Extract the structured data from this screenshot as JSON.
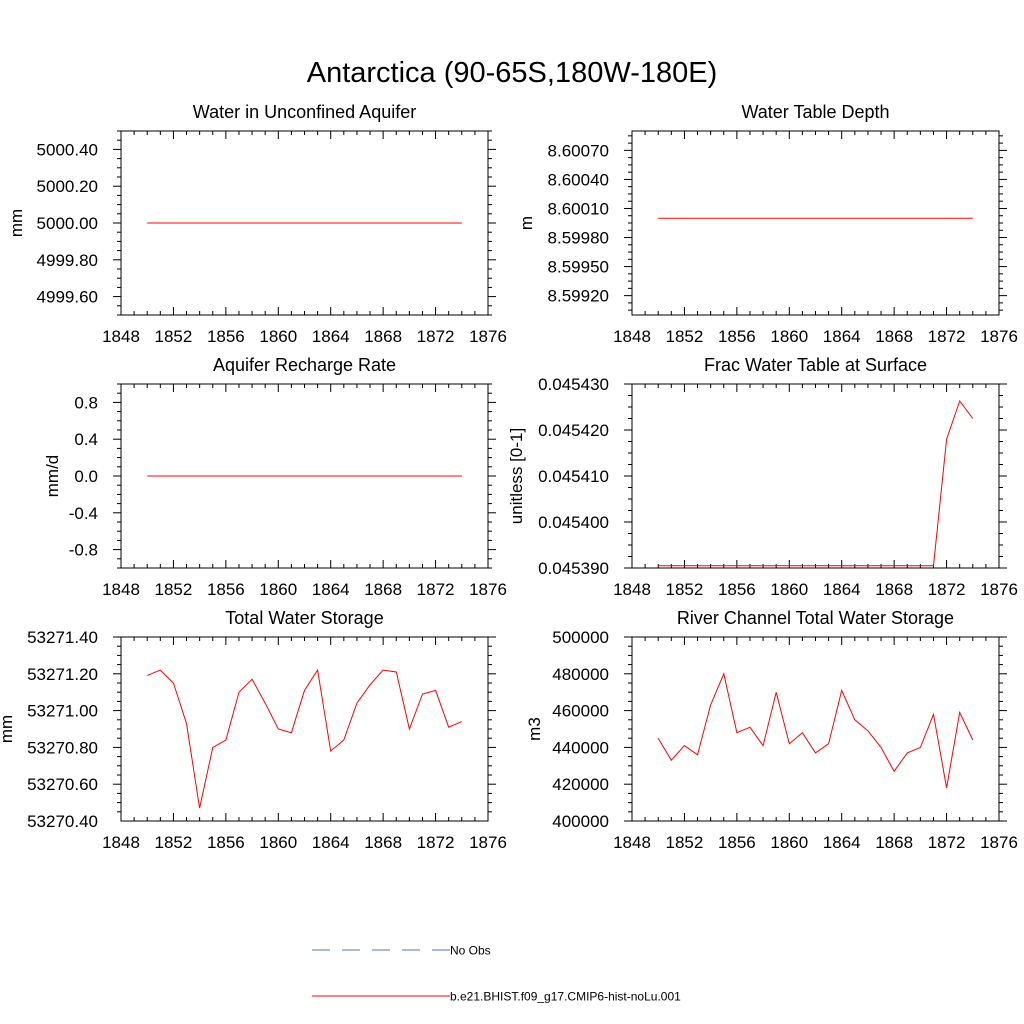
{
  "figure": {
    "title": "Antarctica (90-65S,180W-180E)"
  },
  "legend": {
    "entries": [
      {
        "label": "No Obs",
        "color": "#5b6fbf",
        "dashed": true
      },
      {
        "label": "b.e21.BHIST.f09_g17.CMIP6-hist-noLu.001",
        "color": "#ff0000",
        "dashed": false
      }
    ]
  },
  "chart_data": [
    {
      "type": "line",
      "title": "Water in Unconfined Aquifer",
      "ylabel": "mm",
      "xlim": [
        1848,
        1876
      ],
      "ylim": [
        4999.5,
        5000.5
      ],
      "xticks": [
        "1848",
        "1852",
        "1856",
        "1860",
        "1864",
        "1868",
        "1872",
        "1876"
      ],
      "yticks": [
        {
          "v": 5000.4,
          "l": "5000.40"
        },
        {
          "v": 5000.2,
          "l": "5000.20"
        },
        {
          "v": 5000.0,
          "l": "5000.00"
        },
        {
          "v": 4999.8,
          "l": "4999.80"
        },
        {
          "v": 4999.6,
          "l": "4999.60"
        }
      ],
      "series": [
        {
          "color": "#ff0000",
          "x": [
            1850,
            1851,
            1852,
            1853,
            1854,
            1855,
            1856,
            1857,
            1858,
            1859,
            1860,
            1861,
            1862,
            1863,
            1864,
            1865,
            1866,
            1867,
            1868,
            1869,
            1870,
            1871,
            1872,
            1873,
            1874
          ],
          "values": [
            5000,
            5000,
            5000,
            5000,
            5000,
            5000,
            5000,
            5000,
            5000,
            5000,
            5000,
            5000,
            5000,
            5000,
            5000,
            5000,
            5000,
            5000,
            5000,
            5000,
            5000,
            5000,
            5000,
            5000,
            5000
          ]
        }
      ]
    },
    {
      "type": "line",
      "title": "Water Table Depth",
      "ylabel": "m",
      "xlim": [
        1848,
        1876
      ],
      "ylim": [
        8.599,
        8.6009
      ],
      "xticks": [
        "1848",
        "1852",
        "1856",
        "1860",
        "1864",
        "1868",
        "1872",
        "1876"
      ],
      "yticks": [
        {
          "v": 8.6007,
          "l": "8.60070"
        },
        {
          "v": 8.6004,
          "l": "8.60040"
        },
        {
          "v": 8.6001,
          "l": "8.60010"
        },
        {
          "v": 8.5998,
          "l": "8.59980"
        },
        {
          "v": 8.5995,
          "l": "8.59950"
        },
        {
          "v": 8.5992,
          "l": "8.59920"
        }
      ],
      "series": [
        {
          "color": "#ff0000",
          "x": [
            1850,
            1851,
            1852,
            1853,
            1854,
            1855,
            1856,
            1857,
            1858,
            1859,
            1860,
            1861,
            1862,
            1863,
            1864,
            1865,
            1866,
            1867,
            1868,
            1869,
            1870,
            1871,
            1872,
            1873,
            1874
          ],
          "values": [
            8.6,
            8.6,
            8.6,
            8.6,
            8.6,
            8.6,
            8.6,
            8.6,
            8.6,
            8.6,
            8.6,
            8.6,
            8.6,
            8.6,
            8.6,
            8.6,
            8.6,
            8.6,
            8.6,
            8.6,
            8.6,
            8.6,
            8.6,
            8.6,
            8.6
          ]
        }
      ]
    },
    {
      "type": "line",
      "title": "Aquifer Recharge Rate",
      "ylabel": "mm/d",
      "xlim": [
        1848,
        1876
      ],
      "ylim": [
        -1,
        1
      ],
      "xticks": [
        "1848",
        "1852",
        "1856",
        "1860",
        "1864",
        "1868",
        "1872",
        "1876"
      ],
      "yticks": [
        {
          "v": 0.8,
          "l": "0.8"
        },
        {
          "v": 0.4,
          "l": "0.4"
        },
        {
          "v": 0,
          "l": "0.0"
        },
        {
          "v": -0.4,
          "l": "-0.4"
        },
        {
          "v": -0.8,
          "l": "-0.8"
        }
      ],
      "series": [
        {
          "color": "#ff0000",
          "x": [
            1850,
            1851,
            1852,
            1853,
            1854,
            1855,
            1856,
            1857,
            1858,
            1859,
            1860,
            1861,
            1862,
            1863,
            1864,
            1865,
            1866,
            1867,
            1868,
            1869,
            1870,
            1871,
            1872,
            1873,
            1874
          ],
          "values": [
            0,
            0,
            0,
            0,
            0,
            0,
            0,
            0,
            0,
            0,
            0,
            0,
            0,
            0,
            0,
            0,
            0,
            0,
            0,
            0,
            0,
            0,
            0,
            0,
            0
          ]
        }
      ]
    },
    {
      "type": "line",
      "title": "Frac Water Table at Surface",
      "ylabel": "unitless [0-1]",
      "xlim": [
        1848,
        1876
      ],
      "ylim": [
        0.04539,
        0.04543
      ],
      "xticks": [
        "1848",
        "1852",
        "1856",
        "1860",
        "1864",
        "1868",
        "1872",
        "1876"
      ],
      "yticks": [
        {
          "v": 0.04543,
          "l": "0.045430"
        },
        {
          "v": 0.04542,
          "l": "0.045420"
        },
        {
          "v": 0.04541,
          "l": "0.045410"
        },
        {
          "v": 0.0454,
          "l": "0.045400"
        },
        {
          "v": 0.04539,
          "l": "0.045390"
        }
      ],
      "series": [
        {
          "color": "#ff0000",
          "x": [
            1850,
            1851,
            1852,
            1853,
            1854,
            1855,
            1856,
            1857,
            1858,
            1859,
            1860,
            1861,
            1862,
            1863,
            1864,
            1865,
            1866,
            1867,
            1868,
            1869,
            1870,
            1871,
            1872,
            1873,
            1874
          ],
          "values": [
            0.0453905,
            0.0453905,
            0.0453905,
            0.0453905,
            0.0453905,
            0.0453905,
            0.0453905,
            0.0453905,
            0.0453905,
            0.0453905,
            0.0453905,
            0.0453905,
            0.0453905,
            0.0453905,
            0.0453905,
            0.0453905,
            0.0453905,
            0.0453905,
            0.0453905,
            0.0453905,
            0.0453905,
            0.0453905,
            0.045418,
            0.0454263,
            0.0454225
          ]
        }
      ]
    },
    {
      "type": "line",
      "title": "Total Water Storage",
      "ylabel": "mm",
      "xlim": [
        1848,
        1876
      ],
      "ylim": [
        53270.4,
        53271.4
      ],
      "xticks": [
        "1848",
        "1852",
        "1856",
        "1860",
        "1864",
        "1868",
        "1872",
        "1876"
      ],
      "yticks": [
        {
          "v": 53271.4,
          "l": "53271.40"
        },
        {
          "v": 53271.2,
          "l": "53271.20"
        },
        {
          "v": 53271.0,
          "l": "53271.00"
        },
        {
          "v": 53270.8,
          "l": "53270.80"
        },
        {
          "v": 53270.6,
          "l": "53270.60"
        },
        {
          "v": 53270.4,
          "l": "53270.40"
        }
      ],
      "series": [
        {
          "color": "#ff0000",
          "x": [
            1850,
            1851,
            1852,
            1853,
            1854,
            1855,
            1856,
            1857,
            1858,
            1859,
            1860,
            1861,
            1862,
            1863,
            1864,
            1865,
            1866,
            1867,
            1868,
            1869,
            1870,
            1871,
            1872,
            1873,
            1874
          ],
          "values": [
            53271.19,
            53271.22,
            53271.15,
            53270.93,
            53270.47,
            53270.8,
            53270.84,
            53271.1,
            53271.17,
            53271.04,
            53270.9,
            53270.88,
            53271.11,
            53271.22,
            53270.78,
            53270.84,
            53271.04,
            53271.14,
            53271.22,
            53271.21,
            53270.9,
            53271.09,
            53271.11,
            53270.91,
            53270.94
          ]
        }
      ]
    },
    {
      "type": "line",
      "title": "River Channel Total Water Storage",
      "ylabel": "m3",
      "xlim": [
        1848,
        1876
      ],
      "ylim": [
        400000,
        500000
      ],
      "xticks": [
        "1848",
        "1852",
        "1856",
        "1860",
        "1864",
        "1868",
        "1872",
        "1876"
      ],
      "yticks": [
        {
          "v": 500000,
          "l": "500000"
        },
        {
          "v": 480000,
          "l": "480000"
        },
        {
          "v": 460000,
          "l": "460000"
        },
        {
          "v": 440000,
          "l": "440000"
        },
        {
          "v": 420000,
          "l": "420000"
        },
        {
          "v": 400000,
          "l": "400000"
        }
      ],
      "series": [
        {
          "color": "#ff0000",
          "x": [
            1850,
            1851,
            1852,
            1853,
            1854,
            1855,
            1856,
            1857,
            1858,
            1859,
            1860,
            1861,
            1862,
            1863,
            1864,
            1865,
            1866,
            1867,
            1868,
            1869,
            1870,
            1871,
            1872,
            1873,
            1874
          ],
          "values": [
            445000,
            433000,
            441000,
            436000,
            463000,
            480000,
            448000,
            451000,
            441000,
            470000,
            442000,
            448000,
            437000,
            442000,
            471000,
            455000,
            449000,
            440000,
            427000,
            437000,
            440000,
            458000,
            418000,
            459000,
            444000
          ]
        }
      ]
    }
  ]
}
